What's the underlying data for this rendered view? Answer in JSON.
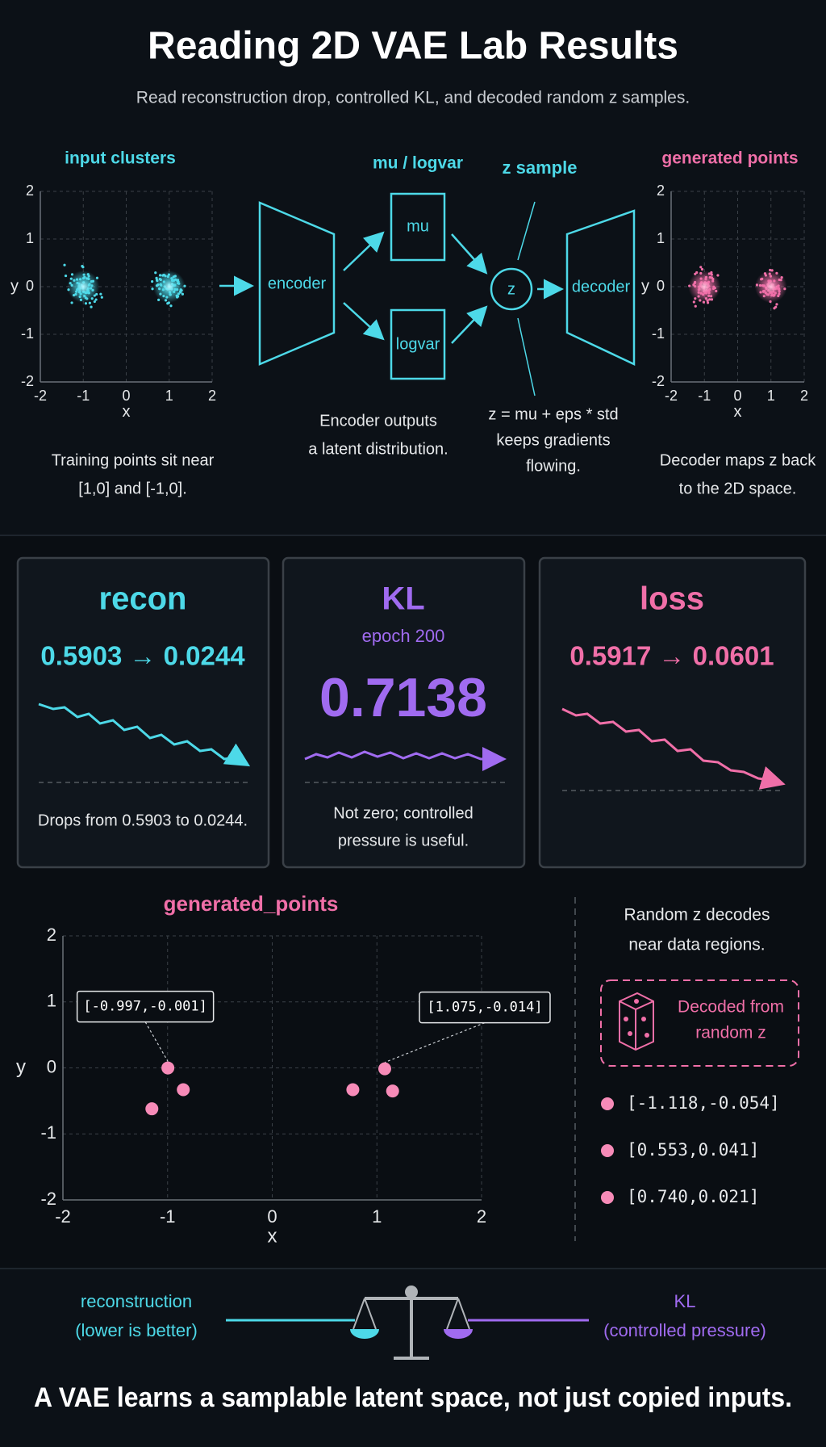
{
  "header": {
    "title": "Reading 2D VAE Lab Results",
    "subtitle": "Read reconstruction drop, controlled KL, and decoded random z samples."
  },
  "pipeline": {
    "input_plot": {
      "title": "input clusters",
      "x_label": "x",
      "y_label": "y",
      "xlim": [
        -2,
        2
      ],
      "ylim": [
        -2,
        2
      ],
      "xticks": [
        -2,
        -1,
        0,
        1,
        2
      ],
      "yticks": [
        -2,
        -1,
        0,
        1,
        2
      ],
      "clusters": {
        "x": [
          -1,
          1
        ],
        "y": [
          0,
          0
        ]
      },
      "caption": [
        "Training points sit near",
        "[1,0] and [-1,0]."
      ]
    },
    "encoder": "encoder",
    "latent_title": "mu / logvar",
    "mu": "mu",
    "logvar": "logvar",
    "encoder_caption": [
      "Encoder outputs",
      "a latent distribution."
    ],
    "z": "z",
    "z_title": "z sample",
    "z_caption": [
      "z = mu + eps * std",
      "keeps gradients",
      "flowing."
    ],
    "decoder": "decoder",
    "output_plot": {
      "title": "generated points",
      "x_label": "x",
      "y_label": "y",
      "xlim": [
        -2,
        2
      ],
      "ylim": [
        -2,
        2
      ],
      "xticks": [
        -2,
        -1,
        0,
        1,
        2
      ],
      "yticks": [
        -2,
        -1,
        0,
        1,
        2
      ],
      "clusters": {
        "x": [
          -1,
          1
        ],
        "y": [
          0,
          0
        ]
      },
      "caption": [
        "Decoder maps z back",
        "to the 2D space."
      ]
    }
  },
  "metrics": [
    {
      "title": "recon",
      "value": "0.5903 → 0.0244",
      "caption": [
        "Drops from 0.5903 to 0.0244."
      ]
    },
    {
      "title": "KL",
      "subtitle": "epoch 200",
      "value": "0.7138",
      "caption": [
        "Not zero; controlled",
        "pressure is useful."
      ]
    },
    {
      "title": "loss",
      "value": "0.5917 → 0.0601",
      "caption": []
    }
  ],
  "scatter": {
    "type": "scatter",
    "title": "generated_points",
    "x_label": "x",
    "y_label": "y",
    "xlim": [
      -2,
      2
    ],
    "ylim": [
      -2,
      2
    ],
    "xticks": [
      -2,
      -1,
      0,
      1,
      2
    ],
    "yticks": [
      -2,
      -1,
      0,
      1,
      2
    ],
    "x": [
      -1.15,
      -0.997,
      -0.85,
      0.77,
      1.075,
      1.15
    ],
    "y": [
      -0.62,
      -0.001,
      -0.33,
      -0.33,
      -0.014,
      -0.35
    ],
    "annotations": [
      {
        "label": "[-0.997,-0.001]",
        "x": -0.997,
        "y": -0.001
      },
      {
        "label": "[1.075,-0.014]",
        "x": 1.075,
        "y": -0.014
      }
    ]
  },
  "legend": {
    "text": [
      "Random z decodes",
      "near data regions."
    ],
    "badge": [
      "Decoded from",
      "random z"
    ],
    "samples": [
      "[-1.118,-0.054]",
      "[0.553,0.041]",
      "[0.740,0.021]"
    ]
  },
  "footer": {
    "left": [
      "reconstruction",
      "(lower is better)"
    ],
    "right": [
      "KL",
      "(controlled pressure)"
    ],
    "tagline": "A VAE learns a samplable latent space, not just copied inputs."
  }
}
